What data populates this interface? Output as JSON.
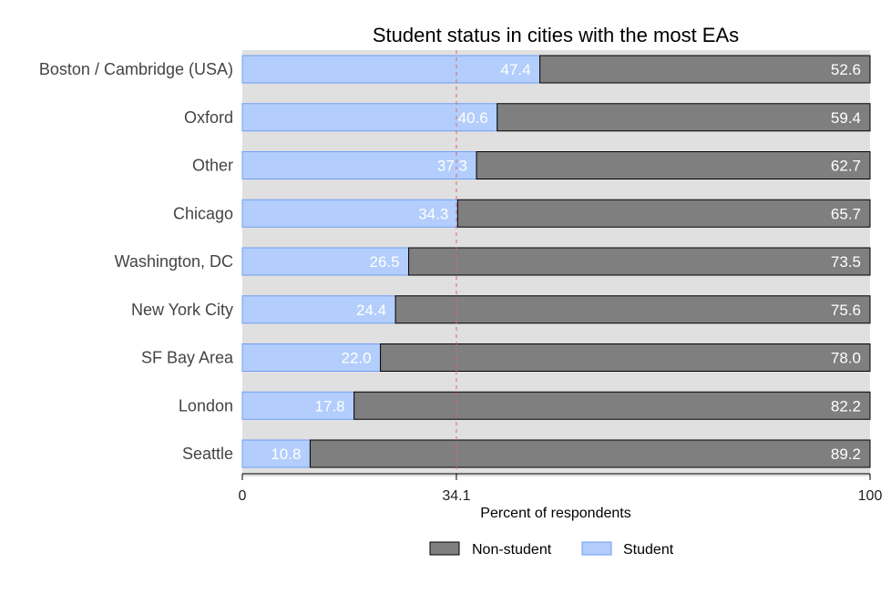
{
  "chart_data": {
    "type": "bar",
    "orientation": "horizontal",
    "stacked": true,
    "title": "Student status in cities with the most EAs",
    "xlabel": "Percent of respondents",
    "ylabel": "",
    "xlim": [
      0,
      100
    ],
    "x_ticks": [
      {
        "value": 0,
        "label": "0"
      },
      {
        "value": 34.1,
        "label": "34.1"
      },
      {
        "value": 100,
        "label": "100"
      }
    ],
    "reference_line": {
      "value": 34.1,
      "color": "#e06666",
      "style": "dashed"
    },
    "categories": [
      "Boston / Cambridge (USA)",
      "Oxford",
      "Other",
      "Chicago",
      "Washington, DC",
      "New York City",
      "SF Bay Area",
      "London",
      "Seattle"
    ],
    "series": [
      {
        "name": "Student",
        "color": "#b3cefc",
        "border": "#6e9ef5",
        "values": [
          47.4,
          40.6,
          37.3,
          34.3,
          26.5,
          24.4,
          22.0,
          17.8,
          10.8
        ],
        "labels": [
          "47.4",
          "40.6",
          "37.3",
          "34.3",
          "26.5",
          "24.4",
          "22.0",
          "17.8",
          "10.8"
        ]
      },
      {
        "name": "Non-student",
        "color": "#7f7f7f",
        "border": "#000000",
        "values": [
          52.6,
          59.4,
          62.7,
          65.7,
          73.5,
          75.6,
          78.0,
          82.2,
          89.2
        ],
        "labels": [
          "52.6",
          "59.4",
          "62.7",
          "65.7",
          "73.5",
          "75.6",
          "78.0",
          "82.2",
          "89.2"
        ]
      }
    ],
    "legend": {
      "placement": "bottom",
      "order": [
        "Non-student",
        "Student"
      ]
    },
    "grid": false,
    "background": "#e0e0e0"
  }
}
